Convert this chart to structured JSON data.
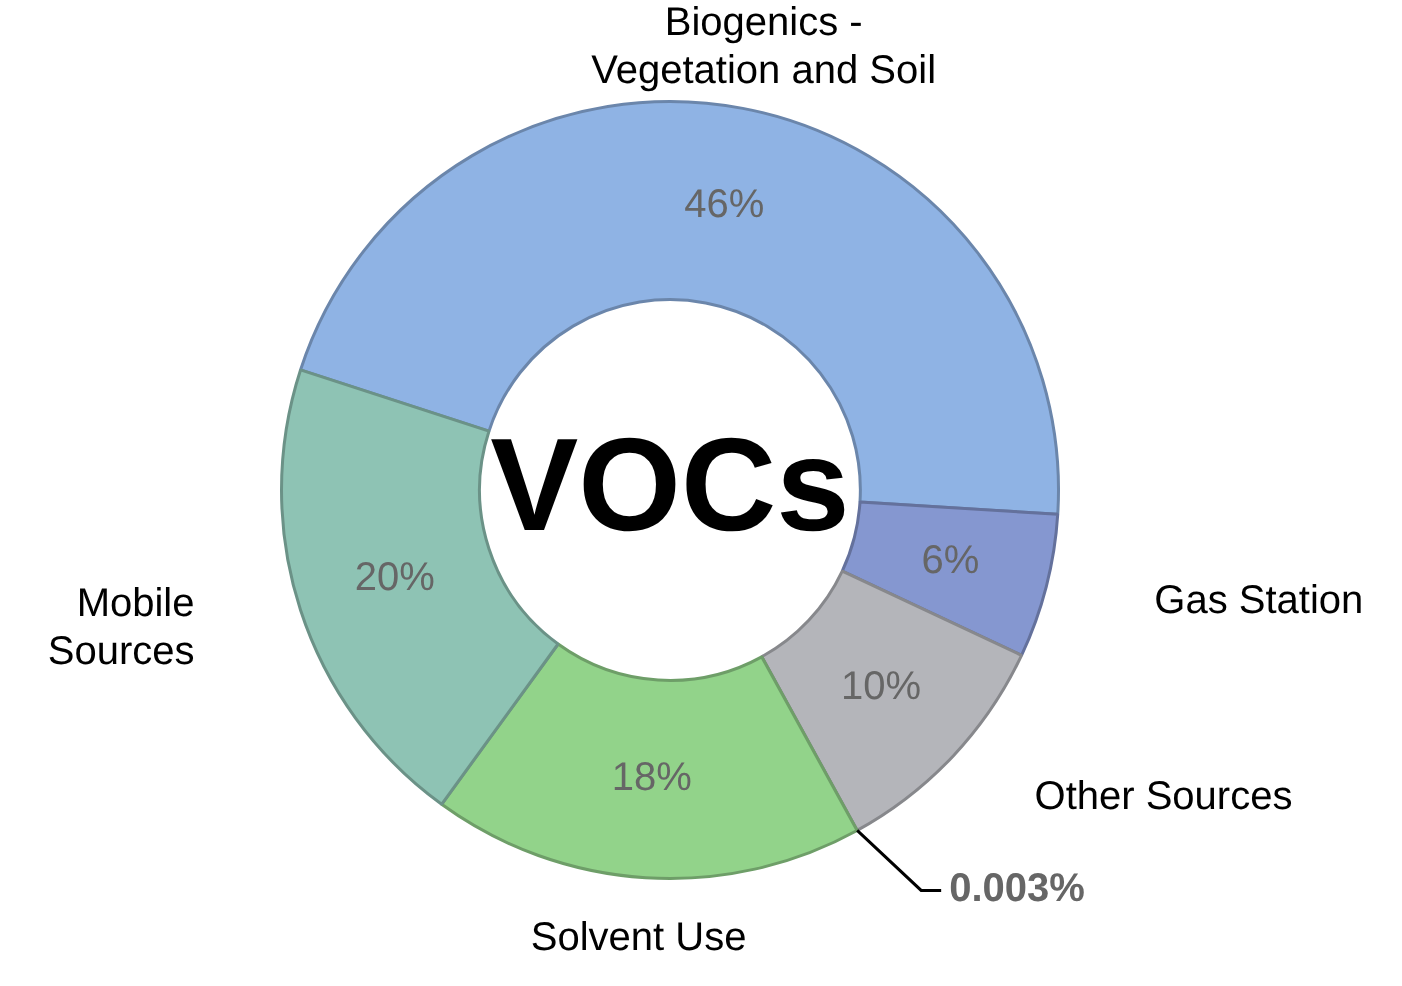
{
  "chart_data": {
    "type": "donut",
    "title": "VOCs",
    "categories": [
      "Biogenics -\nVegetation and Soil",
      "Gas Station",
      "Other Sources",
      null,
      "Solvent Use",
      "Mobile\nSources"
    ],
    "values": [
      46,
      6,
      10,
      0.003,
      18,
      20
    ],
    "colors": [
      "#8fb3e4",
      "#8597d0",
      "#b4b5ba",
      "#b4b5ba",
      "#92d38a",
      "#8ec3b4"
    ],
    "value_labels": [
      "46%",
      "6%",
      "10%",
      "0.003%",
      "18%",
      "20%"
    ]
  }
}
